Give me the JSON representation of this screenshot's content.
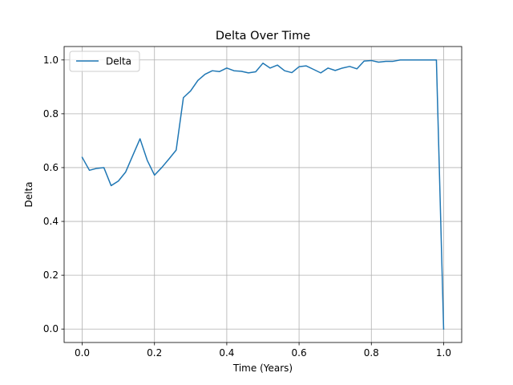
{
  "chart_data": {
    "type": "line",
    "title": "Delta Over Time",
    "xlabel": "Time (Years)",
    "ylabel": "Delta",
    "xlim": [
      -0.05,
      1.05
    ],
    "ylim": [
      -0.05,
      1.05
    ],
    "xticks": [
      0.0,
      0.2,
      0.4,
      0.6,
      0.8,
      1.0
    ],
    "xtick_labels": [
      "0.0",
      "0.2",
      "0.4",
      "0.6",
      "0.8",
      "1.0"
    ],
    "yticks": [
      0.0,
      0.2,
      0.4,
      0.6,
      0.8,
      1.0
    ],
    "ytick_labels": [
      "0.0",
      "0.2",
      "0.4",
      "0.6",
      "0.8",
      "1.0"
    ],
    "grid": true,
    "legend_position": "upper-left",
    "series": [
      {
        "name": "Delta",
        "color": "#1f77b4",
        "x": [
          0.0,
          0.02,
          0.04,
          0.06,
          0.08,
          0.1,
          0.12,
          0.14,
          0.16,
          0.18,
          0.2,
          0.22,
          0.24,
          0.26,
          0.28,
          0.3,
          0.32,
          0.34,
          0.36,
          0.38,
          0.4,
          0.42,
          0.44,
          0.46,
          0.48,
          0.5,
          0.52,
          0.54,
          0.56,
          0.58,
          0.6,
          0.62,
          0.64,
          0.66,
          0.68,
          0.7,
          0.72,
          0.74,
          0.76,
          0.78,
          0.8,
          0.82,
          0.84,
          0.86,
          0.88,
          0.9,
          0.92,
          0.94,
          0.96,
          0.98,
          1.0
        ],
        "y": [
          0.638,
          0.59,
          0.597,
          0.6,
          0.533,
          0.55,
          0.583,
          0.645,
          0.707,
          0.627,
          0.572,
          0.6,
          0.632,
          0.665,
          0.86,
          0.885,
          0.924,
          0.947,
          0.96,
          0.957,
          0.97,
          0.96,
          0.958,
          0.952,
          0.956,
          0.988,
          0.97,
          0.981,
          0.96,
          0.953,
          0.975,
          0.978,
          0.965,
          0.952,
          0.97,
          0.961,
          0.97,
          0.976,
          0.967,
          0.996,
          0.998,
          0.992,
          0.995,
          0.995,
          1.0,
          1.0,
          1.0,
          1.0,
          1.0,
          1.0,
          0.0
        ]
      }
    ]
  }
}
